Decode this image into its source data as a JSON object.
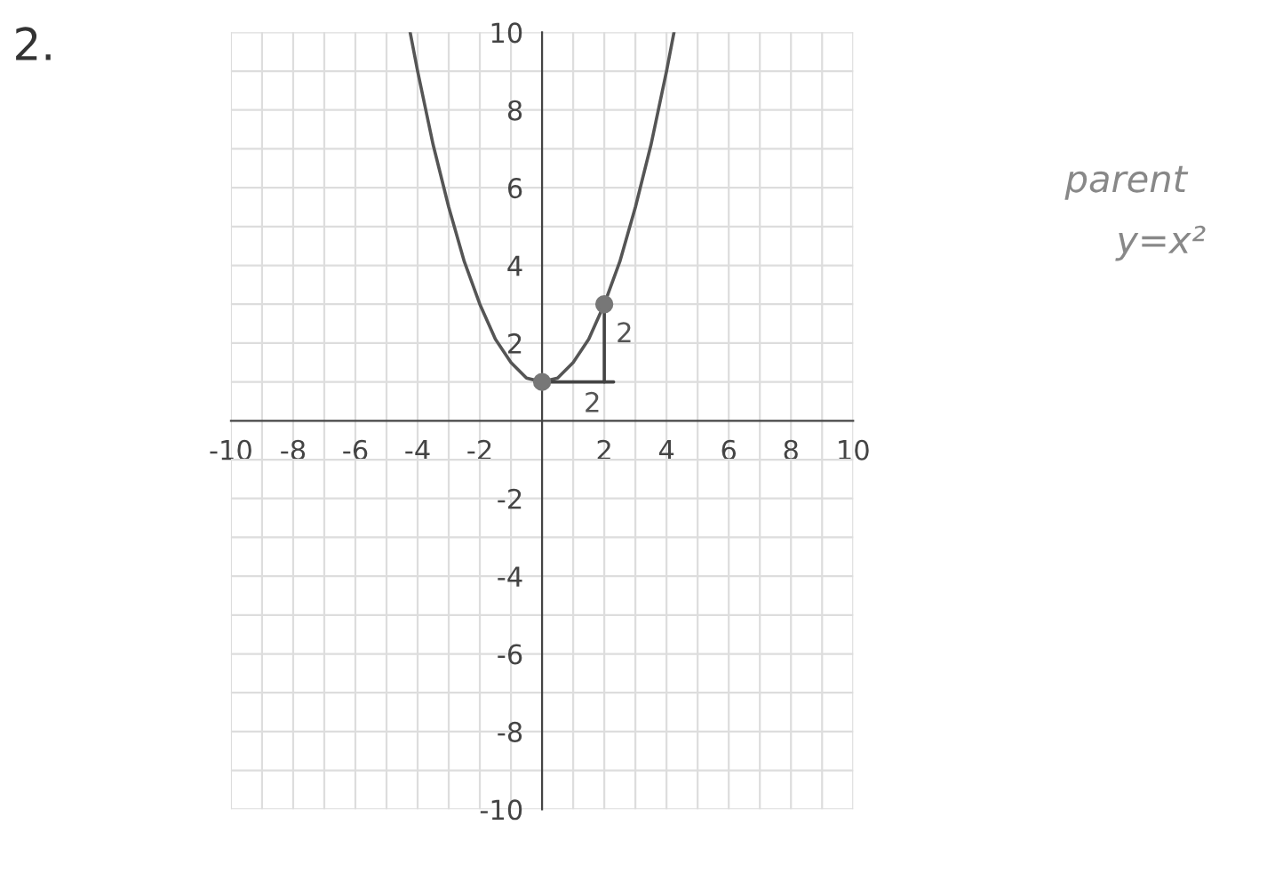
{
  "chart_data": {
    "type": "line",
    "title": "2.",
    "series": [
      {
        "color": "#555555",
        "x": [
          -4.24,
          -4,
          -3.5,
          -3,
          -2.5,
          -2,
          -1.5,
          -1,
          -0.5,
          0,
          0.5,
          1,
          1.5,
          2,
          2.5,
          3,
          3.5,
          4,
          4.24
        ],
        "values": [
          10,
          9,
          7.1,
          5.5,
          4.1,
          3,
          2.1,
          1.5,
          1.1,
          1,
          1.1,
          1.5,
          2.1,
          3,
          4.1,
          5.5,
          7.1,
          9,
          10
        ]
      },
      {
        "type": "scatter",
        "color": "#777777",
        "x": [
          0,
          2
        ],
        "values": [
          1,
          3
        ],
        "marker": "circle"
      },
      {
        "color": "#444444",
        "x": [
          0,
          2.3
        ],
        "values": [
          1,
          1
        ]
      },
      {
        "color": "#444444",
        "x": [
          2,
          2
        ],
        "values": [
          3,
          1
        ]
      }
    ],
    "annotations": [
      "2",
      "2",
      "parent",
      "y=x²"
    ],
    "xlim": [
      -10,
      10
    ],
    "ylim": [
      -10,
      10
    ],
    "xticks": [
      -10,
      {
        "value": -9,
        "label": null
      },
      -8,
      {
        "value": -7,
        "label": null
      },
      -6,
      {
        "value": -5,
        "label": null
      },
      -4,
      {
        "value": -3,
        "label": null
      },
      -2,
      {
        "value": -1,
        "label": null
      },
      {
        "value": 1,
        "label": null
      },
      2,
      {
        "value": 3,
        "label": null
      },
      4,
      {
        "value": 5,
        "label": null
      },
      6,
      {
        "value": 7,
        "label": null
      },
      8,
      {
        "value": 9,
        "label": null
      },
      10
    ],
    "yticks": [
      -10,
      {
        "value": -9,
        "label": null
      },
      -8,
      {
        "value": -7,
        "label": null
      },
      -6,
      {
        "value": -5,
        "label": null
      },
      -4,
      {
        "value": -3,
        "label": null
      },
      -2,
      {
        "value": -1,
        "label": null
      },
      {
        "value": 1,
        "label": null
      },
      2,
      {
        "value": 3,
        "label": null
      },
      4,
      {
        "value": 5,
        "label": null
      },
      6,
      {
        "value": 7,
        "label": null
      },
      8,
      {
        "value": 9,
        "label": null
      },
      10
    ],
    "grid": true
  }
}
